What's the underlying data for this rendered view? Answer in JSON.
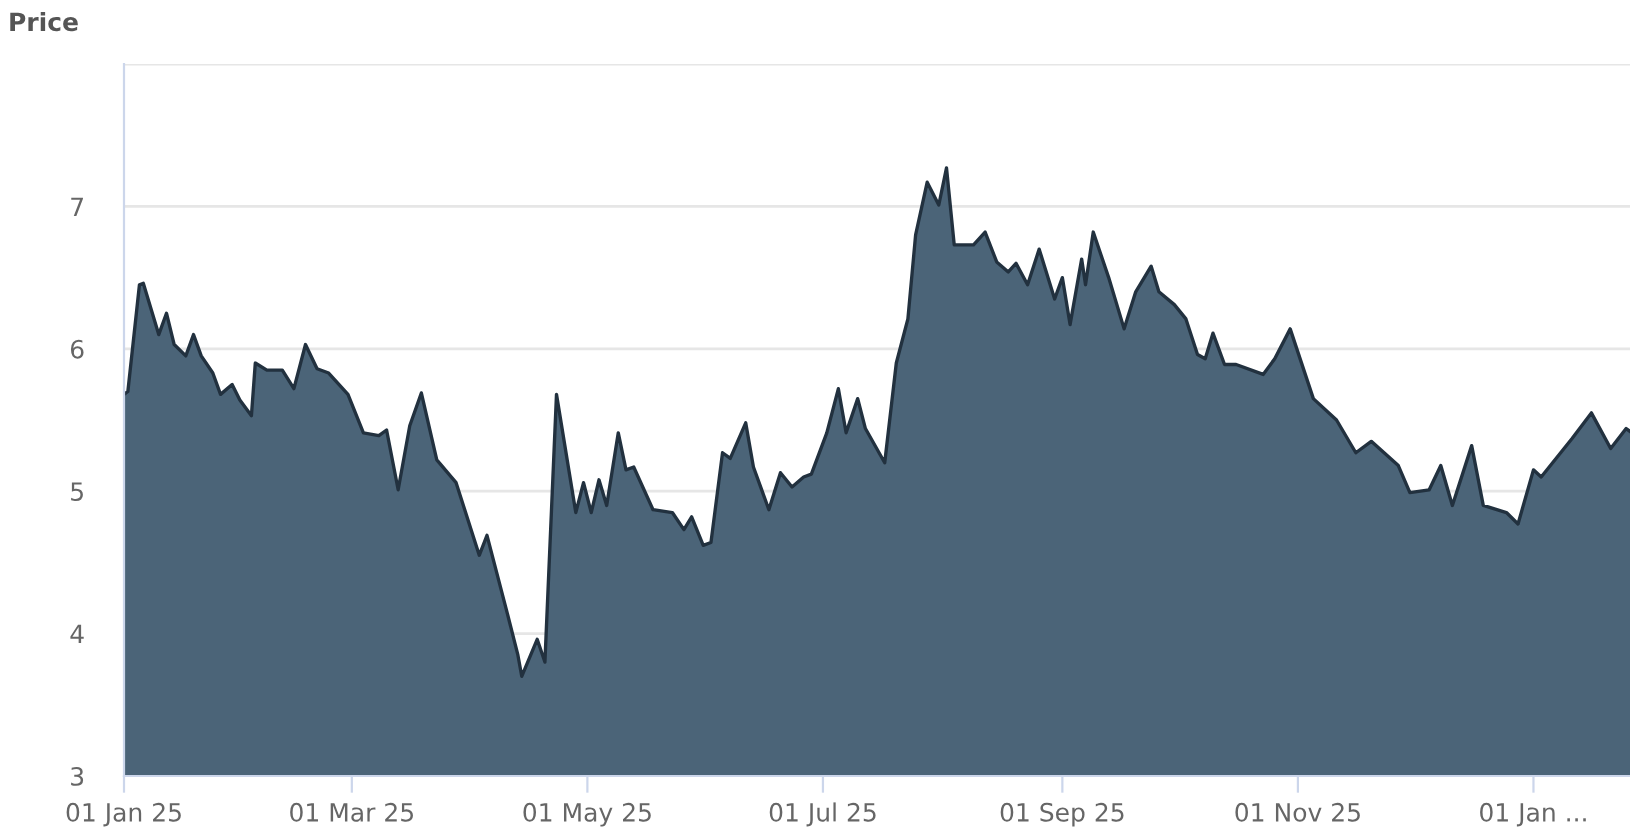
{
  "chart_data": {
    "type": "area",
    "ylabel": "Price",
    "xlim": [
      "2025-01-01",
      "2026-01-26"
    ],
    "ylim": [
      3,
      8
    ],
    "yticks": [
      3,
      4,
      5,
      6,
      7,
      {
        "value": 8,
        "label": null
      }
    ],
    "xticks": [
      {
        "value": "2025-01-01",
        "label": "01 Jan 25"
      },
      {
        "value": "2025-03-01",
        "label": "01 Mar 25"
      },
      {
        "value": "2025-05-01",
        "label": "01 May 25"
      },
      {
        "value": "2025-07-01",
        "label": "01 Jul 25"
      },
      {
        "value": "2025-09-01",
        "label": "01 Sep 25"
      },
      {
        "value": "2025-11-01",
        "label": "01 Nov 25"
      },
      {
        "value": "2026-01-01",
        "label": "01 Jan ..."
      }
    ],
    "grid": "y",
    "legend": false,
    "series": [
      {
        "color": "#4b6478",
        "x": [
          "2025-01-01",
          "2025-01-02",
          "2025-01-05",
          "2025-01-06",
          "2025-01-10",
          "2025-01-12",
          "2025-01-14",
          "2025-01-17",
          "2025-01-19",
          "2025-01-21",
          "2025-01-24",
          "2025-01-26",
          "2025-01-29",
          "2025-01-31",
          "2025-02-03",
          "2025-02-04",
          "2025-02-07",
          "2025-02-11",
          "2025-02-14",
          "2025-02-17",
          "2025-02-20",
          "2025-02-23",
          "2025-02-28",
          "2025-03-04",
          "2025-03-08",
          "2025-03-10",
          "2025-03-13",
          "2025-03-16",
          "2025-03-19",
          "2025-03-23",
          "2025-03-28",
          "2025-04-03",
          "2025-04-05",
          "2025-04-10",
          "2025-04-13",
          "2025-04-14",
          "2025-04-18",
          "2025-04-20",
          "2025-04-23",
          "2025-04-28",
          "2025-04-30",
          "2025-05-02",
          "2025-05-04",
          "2025-05-06",
          "2025-05-09",
          "2025-05-11",
          "2025-05-13",
          "2025-05-18",
          "2025-05-23",
          "2025-05-26",
          "2025-05-28",
          "2025-05-31",
          "2025-06-02",
          "2025-06-05",
          "2025-06-07",
          "2025-06-11",
          "2025-06-13",
          "2025-06-17",
          "2025-06-20",
          "2025-06-23",
          "2025-06-26",
          "2025-06-28",
          "2025-07-02",
          "2025-07-05",
          "2025-07-07",
          "2025-07-10",
          "2025-07-12",
          "2025-07-17",
          "2025-07-20",
          "2025-07-23",
          "2025-07-25",
          "2025-07-28",
          "2025-07-31",
          "2025-08-02",
          "2025-08-04",
          "2025-08-09",
          "2025-08-12",
          "2025-08-15",
          "2025-08-18",
          "2025-08-20",
          "2025-08-23",
          "2025-08-26",
          "2025-08-30",
          "2025-09-01",
          "2025-09-03",
          "2025-09-06",
          "2025-09-07",
          "2025-09-09",
          "2025-09-13",
          "2025-09-17",
          "2025-09-20",
          "2025-09-24",
          "2025-09-26",
          "2025-09-30",
          "2025-10-03",
          "2025-10-06",
          "2025-10-08",
          "2025-10-10",
          "2025-10-13",
          "2025-10-16",
          "2025-10-23",
          "2025-10-26",
          "2025-10-30",
          "2025-11-05",
          "2025-11-11",
          "2025-11-16",
          "2025-11-20",
          "2025-11-27",
          "2025-11-30",
          "2025-12-05",
          "2025-12-08",
          "2025-12-11",
          "2025-12-16",
          "2025-12-19",
          "2025-12-25",
          "2025-12-28",
          "2026-01-01",
          "2026-01-03",
          "2026-01-11",
          "2026-01-16",
          "2026-01-21",
          "2026-01-25",
          "2026-01-26"
        ],
        "values": [
          5.68,
          5.7,
          6.45,
          6.46,
          6.1,
          6.25,
          6.03,
          5.95,
          6.1,
          5.95,
          5.83,
          5.68,
          5.75,
          5.64,
          5.53,
          5.9,
          5.85,
          5.85,
          5.72,
          6.03,
          5.86,
          5.83,
          5.68,
          5.41,
          5.39,
          5.43,
          5.01,
          5.46,
          5.69,
          5.22,
          5.06,
          4.55,
          4.69,
          4.17,
          3.85,
          3.7,
          3.96,
          3.8,
          5.68,
          4.85,
          5.06,
          4.85,
          5.08,
          4.9,
          5.41,
          5.15,
          5.17,
          4.87,
          4.85,
          4.73,
          4.82,
          4.62,
          4.64,
          5.27,
          5.23,
          5.48,
          5.17,
          4.87,
          5.13,
          5.03,
          5.1,
          5.12,
          5.41,
          5.72,
          5.41,
          5.65,
          5.44,
          5.2,
          5.9,
          6.21,
          6.8,
          7.17,
          7.01,
          7.27,
          6.73,
          6.73,
          6.82,
          6.61,
          6.54,
          6.6,
          6.45,
          6.7,
          6.35,
          6.5,
          6.17,
          6.63,
          6.45,
          6.82,
          6.5,
          6.14,
          6.4,
          6.58,
          6.4,
          6.31,
          6.21,
          5.96,
          5.93,
          6.11,
          5.89,
          5.89,
          5.82,
          5.93,
          6.14,
          5.65,
          5.5,
          5.27,
          5.35,
          5.18,
          4.99,
          5.01,
          5.18,
          4.9,
          5.32,
          4.9,
          4.85,
          4.77,
          5.15,
          5.1,
          5.37,
          5.55,
          5.3,
          5.44,
          5.42
        ]
      }
    ]
  }
}
